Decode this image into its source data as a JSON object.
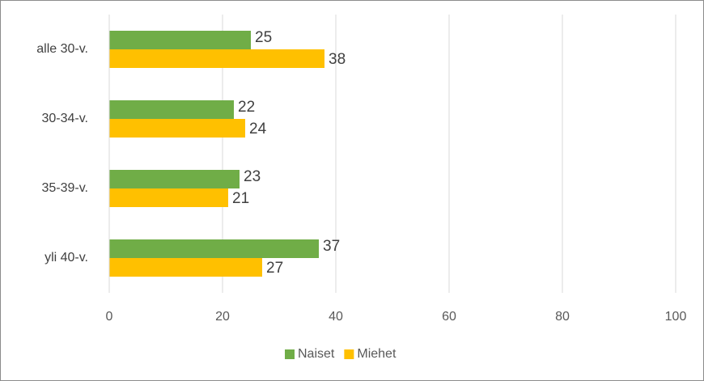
{
  "chart_data": {
    "type": "bar",
    "orientation": "horizontal",
    "categories": [
      "alle 30-v.",
      "30-34-v.",
      "35-39-v.",
      "yli 40-v."
    ],
    "series": [
      {
        "name": "Naiset",
        "color": "#70ad47",
        "values": [
          25,
          22,
          23,
          37
        ]
      },
      {
        "name": "Miehet",
        "color": "#ffc000",
        "values": [
          38,
          24,
          21,
          27
        ]
      }
    ],
    "xlim": [
      0,
      100
    ],
    "xticks": [
      0,
      20,
      40,
      60,
      80,
      100
    ],
    "grid": true,
    "legend": "bottom"
  }
}
